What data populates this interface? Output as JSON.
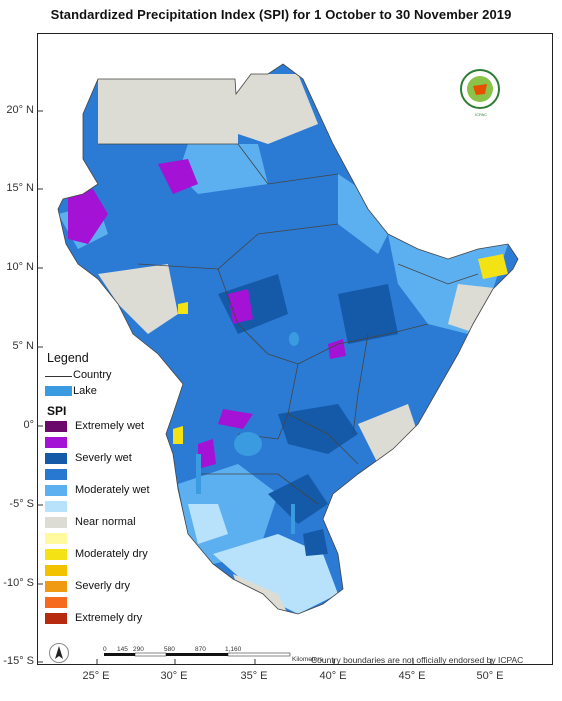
{
  "title": "Standardized Precipitation Index (SPI)  for  1 October to 30 November 2019",
  "latitude_ticks": [
    "20° N",
    "15° N",
    "10° N",
    "5° N",
    "0°",
    "-5° S",
    "-10° S",
    "-15° S"
  ],
  "longitude_ticks": [
    "25° E",
    "30° E",
    "35° E",
    "40° E",
    "45° E",
    "50° E"
  ],
  "legend": {
    "title": "Legend",
    "country_label": "Country",
    "lake_label": "Lake",
    "lake_color": "#3a9be0",
    "spi_title": "SPI",
    "classes": [
      {
        "label": "Extremely wet",
        "color": "#6b0a6b"
      },
      {
        "label": "",
        "color": "#a412d6"
      },
      {
        "label": "Severly wet",
        "color": "#145aa8"
      },
      {
        "label": "",
        "color": "#2878d2"
      },
      {
        "label": "Moderately wet",
        "color": "#5cb0f0"
      },
      {
        "label": "",
        "color": "#b8e2fb"
      },
      {
        "label": "Near normal",
        "color": "#dcdcd4"
      },
      {
        "label": "",
        "color": "#fff9a0"
      },
      {
        "label": "Moderately dry",
        "color": "#f3e214"
      },
      {
        "label": "",
        "color": "#f2c200"
      },
      {
        "label": "Severly dry",
        "color": "#f09a14"
      },
      {
        "label": "",
        "color": "#f56a1e"
      },
      {
        "label": "Extremely dry",
        "color": "#b82a10"
      }
    ]
  },
  "scale_bar": {
    "ticks": [
      "0",
      "145",
      "290",
      "580",
      "870",
      "1,160"
    ],
    "unit": "Kilometers"
  },
  "disclaimer": "Country boundaries are not officially endorsed by ICPAC"
}
